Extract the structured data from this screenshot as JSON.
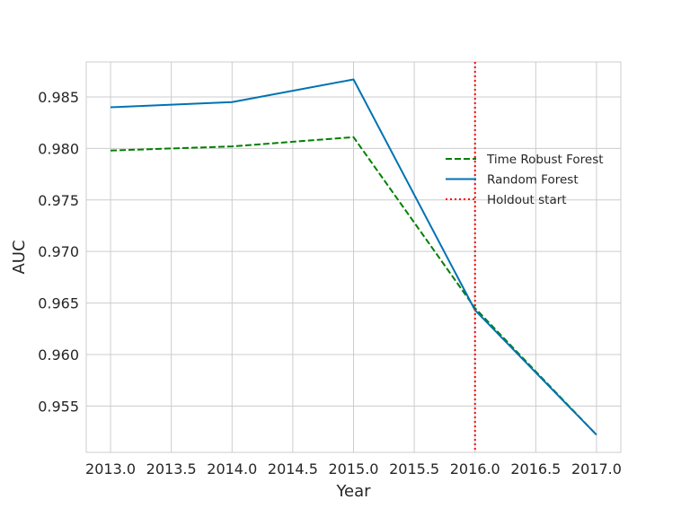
{
  "chart_data": {
    "type": "line",
    "title": "",
    "xlabel": "Year",
    "ylabel": "AUC",
    "xlim": [
      2012.8,
      2017.2
    ],
    "ylim": [
      0.9505,
      0.9884
    ],
    "xticks": [
      2013.0,
      2013.5,
      2014.0,
      2014.5,
      2015.0,
      2015.5,
      2016.0,
      2016.5,
      2017.0
    ],
    "xtick_labels": [
      "2013.0",
      "2013.5",
      "2014.0",
      "2014.5",
      "2015.0",
      "2015.5",
      "2016.0",
      "2016.5",
      "2017.0"
    ],
    "yticks": [
      0.955,
      0.96,
      0.965,
      0.97,
      0.975,
      0.98,
      0.985
    ],
    "ytick_labels": [
      "0.955",
      "0.960",
      "0.965",
      "0.970",
      "0.975",
      "0.980",
      "0.985"
    ],
    "grid": true,
    "legend_position": "center-right",
    "series": [
      {
        "name": "Time Robust Forest",
        "x": [
          2013,
          2014,
          2015,
          2016,
          2017
        ],
        "values": [
          0.9798,
          0.9802,
          0.9811,
          0.9645,
          0.9522
        ],
        "color": "#008000",
        "style": "dashed"
      },
      {
        "name": "Random Forest",
        "x": [
          2013,
          2014,
          2015,
          2016,
          2017
        ],
        "values": [
          0.984,
          0.9845,
          0.9867,
          0.9643,
          0.9522
        ],
        "color": "#0072b2",
        "style": "solid"
      }
    ],
    "vlines": [
      {
        "name": "Holdout start",
        "x": 2016.0,
        "color": "#ff0000",
        "style": "dotted"
      }
    ]
  }
}
